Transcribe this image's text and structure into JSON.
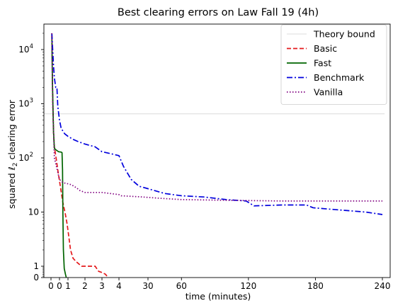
{
  "chart_data": {
    "type": "line",
    "title": "Best clearing errors on Law Fall 19 (4h)",
    "xlabel": "time (minutes)",
    "ylabel_prefix": "squared ",
    "ylabel_ell": "ℓ",
    "ylabel_sub": "2",
    "ylabel_suffix": " clearing error",
    "x_scale": "piecewise: 0–4 minutes linear and stretched, 4–240 minutes linear and compressed",
    "y_scale": "symlog (linear below 1, log above)",
    "xlim": [
      -0.5,
      242
    ],
    "ylim": [
      0,
      40000
    ],
    "x_ticks": [
      {
        "value": 0,
        "label": "0"
      },
      {
        "value": 0.5,
        "label": "0"
      },
      {
        "value": 1,
        "label": "1"
      },
      {
        "value": 2,
        "label": "2"
      },
      {
        "value": 3,
        "label": "3"
      },
      {
        "value": 4,
        "label": "4"
      },
      {
        "value": 30,
        "label": "30"
      },
      {
        "value": 60,
        "label": "60"
      },
      {
        "value": 120,
        "label": "120"
      },
      {
        "value": 180,
        "label": "180"
      },
      {
        "value": 240,
        "label": "240"
      }
    ],
    "y_ticks": [
      {
        "value": 0,
        "label": "0"
      },
      {
        "value": 1,
        "label": "1"
      },
      {
        "value": 10,
        "label": "10"
      },
      {
        "value": 100,
        "label": "10",
        "sup": "2"
      },
      {
        "value": 1000,
        "label": "10",
        "sup": "3"
      },
      {
        "value": 10000,
        "label": "10",
        "sup": "4"
      }
    ],
    "legend_position": "top-right",
    "series": [
      {
        "name": "Theory bound",
        "color": "#d3d3d3",
        "style": "solid",
        "points": [
          [
            -0.5,
            650
          ],
          [
            242,
            650
          ]
        ]
      },
      {
        "name": "Basic",
        "color": "#e41a1c",
        "style": "dashed",
        "points": [
          [
            0.05,
            18000
          ],
          [
            0.07,
            9000
          ],
          [
            0.09,
            2000
          ],
          [
            0.12,
            700
          ],
          [
            0.15,
            300
          ],
          [
            0.2,
            160
          ],
          [
            0.3,
            100
          ],
          [
            0.4,
            60
          ],
          [
            0.55,
            30
          ],
          [
            0.7,
            15
          ],
          [
            0.85,
            9
          ],
          [
            0.95,
            6
          ],
          [
            1.05,
            3.5
          ],
          [
            1.15,
            2
          ],
          [
            1.3,
            1.4
          ],
          [
            1.5,
            1.2
          ],
          [
            1.8,
            1.0
          ],
          [
            2.6,
            1.0
          ],
          [
            2.8,
            0.55
          ],
          [
            3.0,
            0.45
          ],
          [
            3.2,
            0.3
          ],
          [
            3.35,
            0.02
          ]
        ]
      },
      {
        "name": "Fast",
        "color": "#006400",
        "style": "solid",
        "points": [
          [
            0.05,
            20000
          ],
          [
            0.08,
            3000
          ],
          [
            0.12,
            800
          ],
          [
            0.15,
            300
          ],
          [
            0.2,
            150
          ],
          [
            0.3,
            140
          ],
          [
            0.45,
            130
          ],
          [
            0.6,
            128
          ],
          [
            0.65,
            125
          ],
          [
            0.68,
            60
          ],
          [
            0.7,
            10
          ],
          [
            0.73,
            2
          ],
          [
            0.78,
            0.8
          ],
          [
            0.85,
            0.3
          ],
          [
            0.9,
            0
          ]
        ]
      },
      {
        "name": "Benchmark",
        "color": "#0000dd",
        "style": "dashdot",
        "points": [
          [
            0.05,
            20000
          ],
          [
            0.1,
            10000
          ],
          [
            0.15,
            5000
          ],
          [
            0.2,
            3000
          ],
          [
            0.28,
            2000
          ],
          [
            0.35,
            2000
          ],
          [
            0.4,
            900
          ],
          [
            0.5,
            500
          ],
          [
            0.6,
            350
          ],
          [
            0.8,
            280
          ],
          [
            1.0,
            250
          ],
          [
            1.3,
            220
          ],
          [
            1.6,
            200
          ],
          [
            2.0,
            180
          ],
          [
            2.6,
            160
          ],
          [
            3.0,
            130
          ],
          [
            3.5,
            120
          ],
          [
            4.0,
            110
          ],
          [
            8,
            70
          ],
          [
            15,
            40
          ],
          [
            22,
            30
          ],
          [
            30,
            27
          ],
          [
            45,
            22
          ],
          [
            60,
            20
          ],
          [
            80,
            19
          ],
          [
            100,
            17
          ],
          [
            118,
            16
          ],
          [
            125,
            13
          ],
          [
            150,
            13.5
          ],
          [
            172,
            13.5
          ],
          [
            178,
            12
          ],
          [
            200,
            11
          ],
          [
            225,
            10
          ],
          [
            240,
            9
          ]
        ]
      },
      {
        "name": "Vanilla",
        "color": "#800080",
        "style": "dotted",
        "points": [
          [
            0.05,
            20000
          ],
          [
            0.1,
            1000
          ],
          [
            0.2,
            100
          ],
          [
            0.5,
            40
          ],
          [
            0.7,
            35
          ],
          [
            1.2,
            32
          ],
          [
            1.5,
            28
          ],
          [
            1.7,
            25
          ],
          [
            2.0,
            23
          ],
          [
            3.0,
            23
          ],
          [
            4.0,
            21
          ],
          [
            6,
            20
          ],
          [
            25,
            19
          ],
          [
            40,
            18
          ],
          [
            60,
            17
          ],
          [
            100,
            16.5
          ],
          [
            150,
            16
          ],
          [
            200,
            16
          ],
          [
            240,
            16
          ]
        ]
      }
    ]
  }
}
